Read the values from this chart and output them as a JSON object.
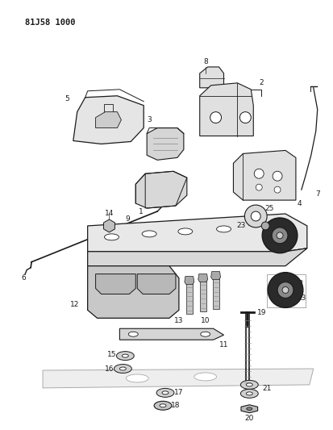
{
  "title": "81J58 1000",
  "bg_color": "#ffffff",
  "lc": "#1a1a1a",
  "figsize": [
    4.14,
    5.33
  ],
  "dpi": 100
}
